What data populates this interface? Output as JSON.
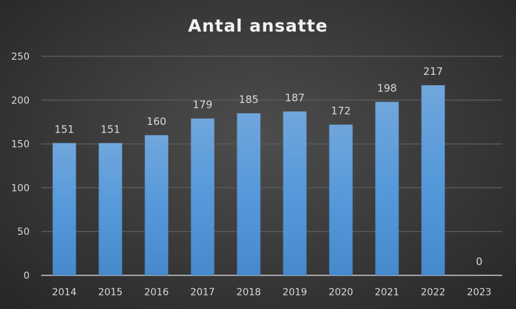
{
  "chart_data": {
    "type": "bar",
    "title": "Antal ansatte",
    "categories": [
      "2014",
      "2015",
      "2016",
      "2017",
      "2018",
      "2019",
      "2020",
      "2021",
      "2022",
      "2023"
    ],
    "values": [
      151,
      151,
      160,
      179,
      185,
      187,
      172,
      198,
      217,
      0
    ],
    "ylim": [
      0,
      250
    ],
    "yticks": [
      0,
      50,
      100,
      150,
      200,
      250
    ],
    "grid": true,
    "data_labels": true,
    "bar_color": "#5b9bd5",
    "background_color": "#404040"
  }
}
